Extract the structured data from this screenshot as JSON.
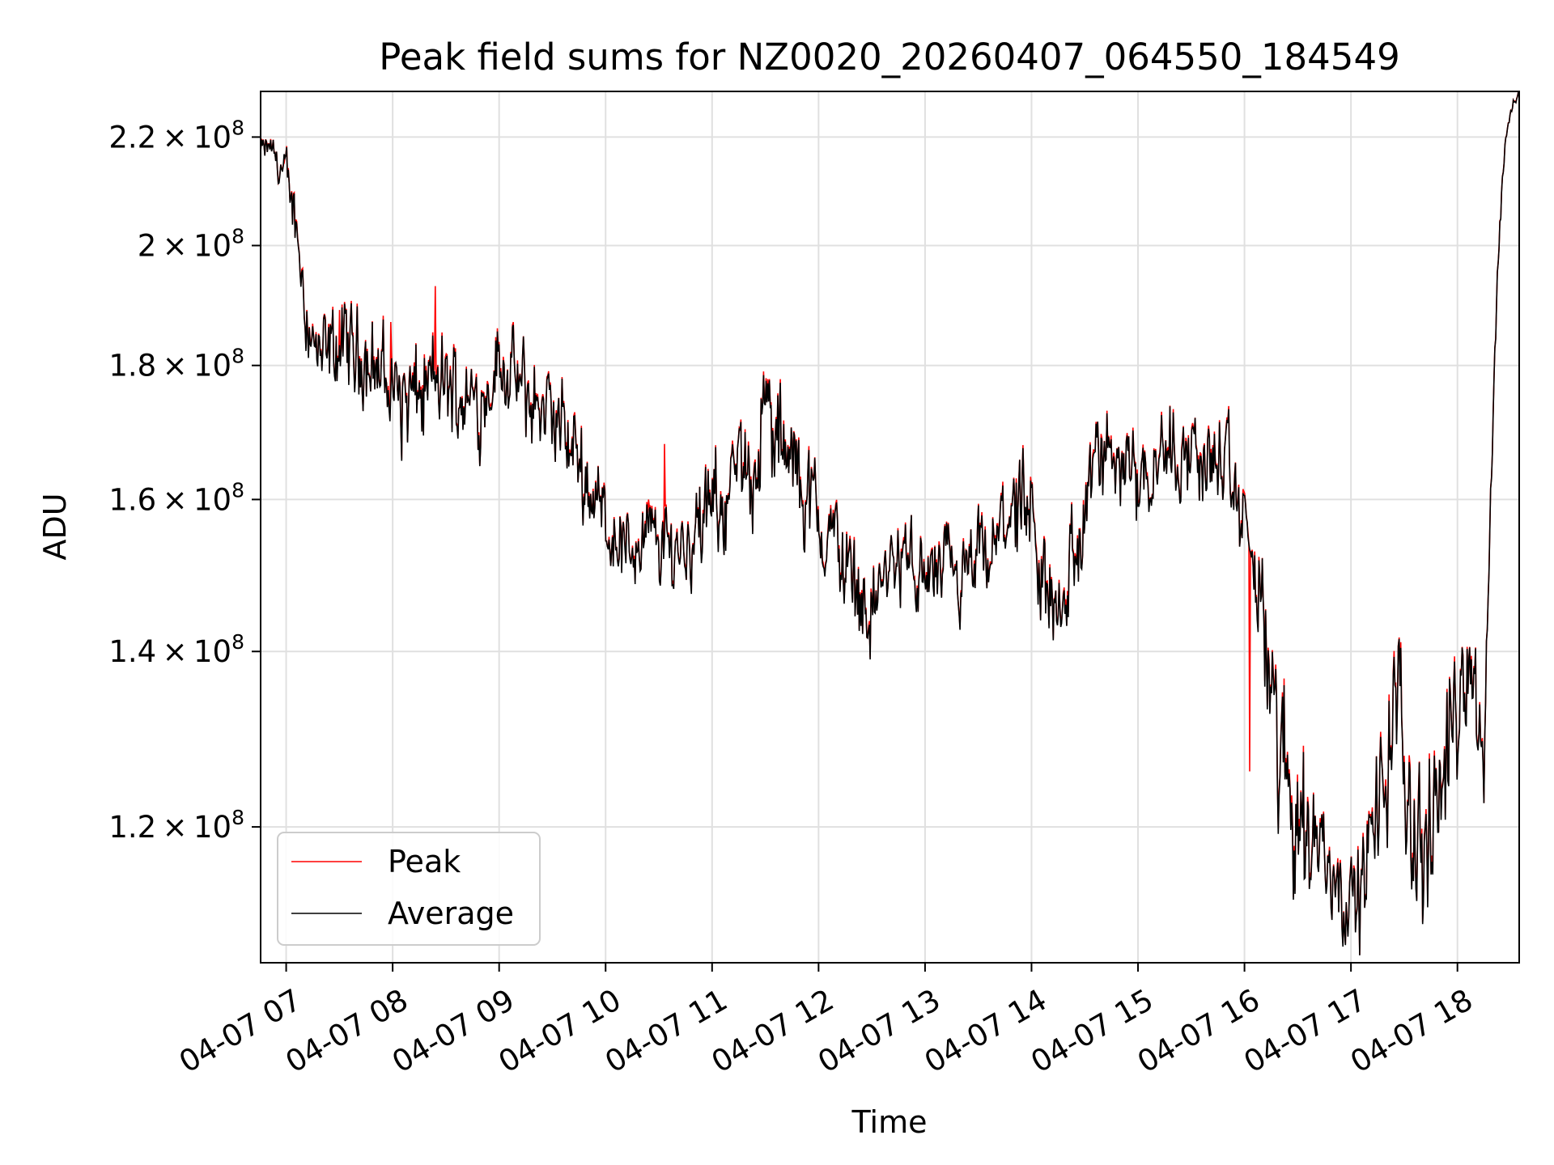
{
  "chart_data": {
    "type": "line",
    "title": "Peak field sums for NZ0020_20260407_064550_184549",
    "xlabel": "Time",
    "ylabel": "ADU",
    "y_scale": "log",
    "ylim": [
      106500000,
      229000000
    ],
    "xlim_hours": [
      6.76,
      18.58
    ],
    "grid": true,
    "legend_position": "lower-left",
    "x_ticks": [
      {
        "hour": 7,
        "label": "04-07 07"
      },
      {
        "hour": 8,
        "label": "04-07 08"
      },
      {
        "hour": 9,
        "label": "04-07 09"
      },
      {
        "hour": 10,
        "label": "04-07 10"
      },
      {
        "hour": 11,
        "label": "04-07 11"
      },
      {
        "hour": 12,
        "label": "04-07 12"
      },
      {
        "hour": 13,
        "label": "04-07 13"
      },
      {
        "hour": 14,
        "label": "04-07 14"
      },
      {
        "hour": 15,
        "label": "04-07 15"
      },
      {
        "hour": 16,
        "label": "04-07 16"
      },
      {
        "hour": 17,
        "label": "04-07 17"
      },
      {
        "hour": 18,
        "label": "04-07 18"
      }
    ],
    "y_ticks": [
      {
        "value": 120000000,
        "mantissa": "1.2",
        "base": "10",
        "exp": "8"
      },
      {
        "value": 140000000,
        "mantissa": "1.4",
        "base": "10",
        "exp": "8"
      },
      {
        "value": 160000000,
        "mantissa": "1.6",
        "base": "10",
        "exp": "8"
      },
      {
        "value": 180000000,
        "mantissa": "1.8",
        "base": "10",
        "exp": "8"
      },
      {
        "value": 200000000,
        "mantissa": "2",
        "base": "10",
        "exp": "8"
      },
      {
        "value": 220000000,
        "mantissa": "2.2",
        "base": "10",
        "exp": "8"
      }
    ],
    "series": [
      {
        "name": "Peak",
        "color": "#ff0000"
      },
      {
        "name": "Average",
        "color": "#000000"
      }
    ],
    "trend": {
      "x_hours": [
        6.76,
        6.85,
        6.95,
        7.05,
        7.1,
        7.2,
        7.3,
        7.5,
        7.7,
        7.85,
        8.0,
        8.2,
        8.4,
        8.6,
        8.8,
        9.0,
        9.2,
        9.4,
        9.6,
        9.8,
        10.0,
        10.2,
        10.4,
        10.6,
        10.8,
        11.0,
        11.2,
        11.4,
        11.5,
        11.6,
        11.8,
        12.0,
        12.2,
        12.4,
        12.5,
        12.6,
        12.8,
        13.0,
        13.2,
        13.4,
        13.5,
        13.6,
        13.8,
        14.0,
        14.1,
        14.2,
        14.4,
        14.6,
        14.8,
        15.0,
        15.2,
        15.4,
        15.6,
        15.8,
        15.9,
        16.0,
        16.1,
        16.2,
        16.3,
        16.4,
        16.5,
        16.6,
        16.7,
        16.8,
        16.9,
        17.0,
        17.1,
        17.2,
        17.3,
        17.4,
        17.5,
        17.6,
        17.7,
        17.8,
        17.9,
        18.0,
        18.1,
        18.2,
        18.25,
        18.3,
        18.35,
        18.4,
        18.45,
        18.5,
        18.58
      ],
      "values_millions": [
        217,
        218,
        214,
        209,
        203,
        188,
        180,
        183,
        182,
        180,
        176,
        174,
        177,
        176,
        174,
        181,
        176,
        173,
        170,
        164,
        157,
        153,
        155,
        153,
        155,
        158,
        162,
        166,
        173,
        168,
        164,
        157,
        153,
        147,
        145,
        149,
        152,
        149,
        150,
        148,
        152,
        150,
        160,
        153,
        148,
        146,
        151,
        165,
        167,
        164,
        167,
        167,
        166,
        165,
        160,
        157,
        150,
        140,
        130,
        125,
        122,
        120,
        118,
        116,
        115,
        112,
        114,
        118,
        125,
        133,
        128,
        120,
        117,
        122,
        128,
        134,
        140,
        132,
        127,
        155,
        180,
        205,
        220,
        225,
        229
      ],
      "noise_millions": [
        2,
        2,
        3,
        4,
        4,
        5,
        5,
        5,
        5,
        5,
        6,
        6,
        6,
        5,
        5,
        5,
        5,
        5,
        5,
        5,
        4,
        4,
        4,
        4,
        4,
        5,
        5,
        6,
        6,
        6,
        5,
        5,
        5,
        4,
        4,
        4,
        4,
        4,
        4,
        4,
        4,
        4,
        5,
        6,
        6,
        6,
        6,
        5,
        5,
        5,
        5,
        5,
        5,
        5,
        5,
        5,
        5,
        6,
        7,
        7,
        7,
        6,
        5,
        4,
        4,
        3,
        4,
        5,
        6,
        7,
        7,
        6,
        6,
        6,
        6,
        5,
        5,
        4,
        3,
        3,
        2,
        2,
        1,
        1,
        1
      ]
    },
    "peak_spikes": [
      {
        "hour": 8.4,
        "peak_millions": 193
      },
      {
        "hour": 7.98,
        "peak_millions": 187
      },
      {
        "hour": 7.5,
        "peak_millions": 189
      },
      {
        "hour": 10.55,
        "peak_millions": 168
      },
      {
        "hour": 10.4,
        "peak_millions": 160
      },
      {
        "hour": 16.05,
        "peak_millions": 126
      },
      {
        "hour": 6.98,
        "peak_millions": 215
      }
    ]
  }
}
